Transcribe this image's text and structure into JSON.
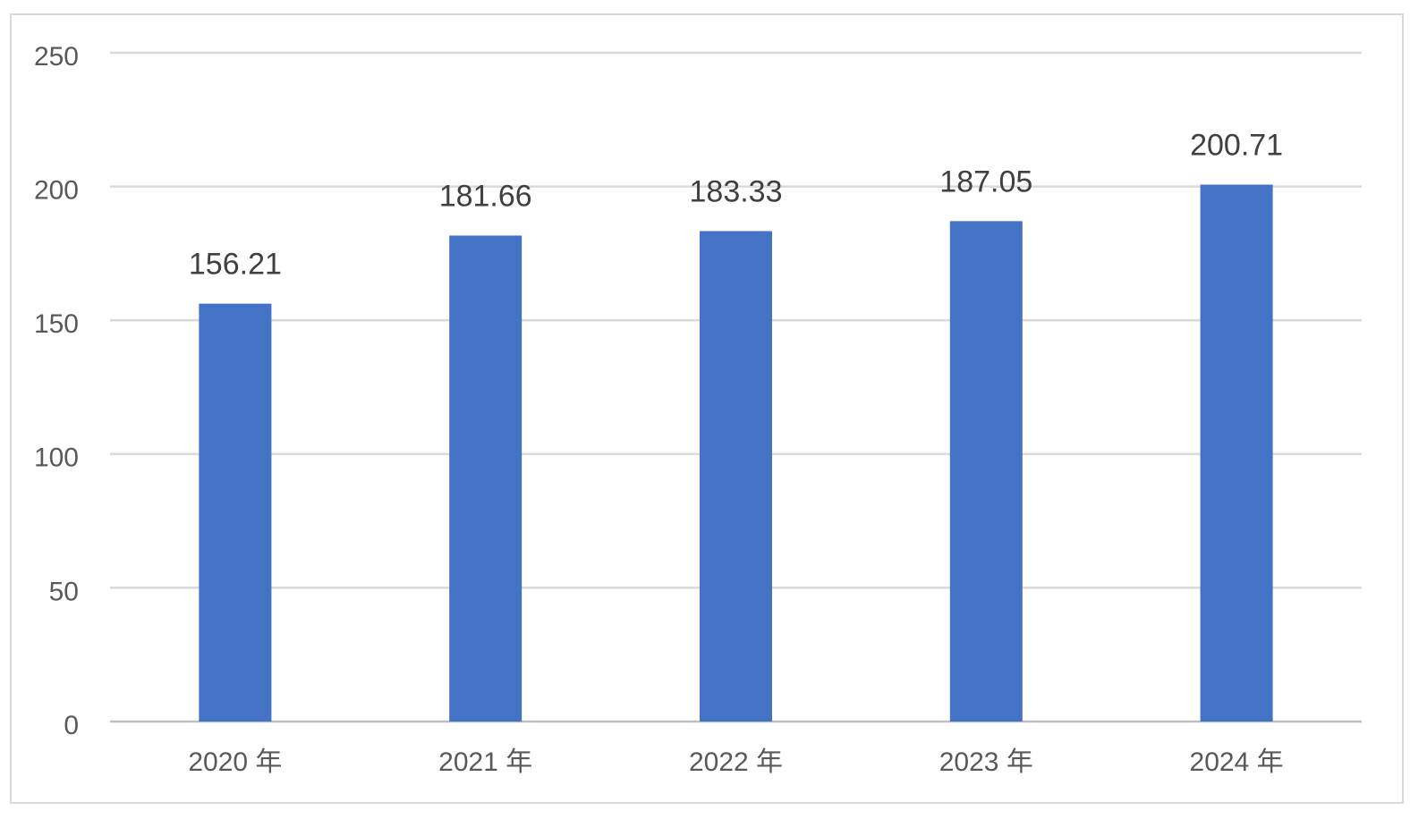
{
  "chart_data": {
    "type": "bar",
    "categories": [
      "2020 年",
      "2021 年",
      "2022 年",
      "2023 年",
      "2024 年"
    ],
    "values": [
      156.21,
      181.66,
      183.33,
      187.05,
      200.71
    ],
    "color": "#4472c4",
    "ylim": [
      0,
      250
    ],
    "yticks": [
      0,
      50,
      100,
      150,
      200,
      250
    ],
    "grid": true
  }
}
